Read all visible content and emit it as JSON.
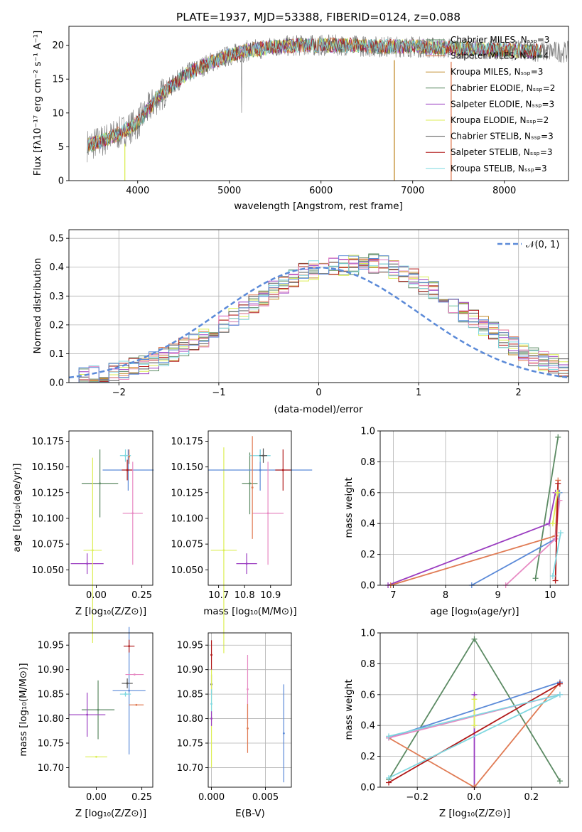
{
  "chart_data": [
    {
      "type": "line",
      "title": "PLATE=1937, MJD=53388, FIBERID=0124, z=0.088",
      "xlabel": "wavelength [Angstrom, rest frame]",
      "ylabel": "Flux [fλ10⁻¹⁷ erg cm⁻² s⁻¹ A⁻¹]",
      "xlim": [
        3250,
        8700
      ],
      "ylim": [
        0,
        22.8
      ],
      "xticks": [
        "4000",
        "5000",
        "6000",
        "7000",
        "8000"
      ],
      "yticks": [
        "0",
        "5",
        "10",
        "15",
        "20"
      ],
      "legend_position": "right",
      "continuum_model": {
        "x": [
          3450,
          3600,
          3800,
          4000,
          4200,
          4500,
          4800,
          5000,
          5200,
          5500,
          5800,
          6000,
          6300,
          6600,
          7000,
          7300,
          7600,
          8000,
          8400,
          8700
        ],
        "y": [
          5.2,
          5.8,
          7.0,
          8.5,
          12.0,
          15.5,
          17.5,
          18.5,
          19.2,
          19.8,
          20.0,
          20.0,
          20.0,
          19.8,
          19.8,
          19.6,
          19.5,
          19.3,
          19.1,
          19.0
        ]
      },
      "series": [
        {
          "name": "Chabrier MILES, N_SSP=3",
          "color": "#5b8a63"
        },
        {
          "name": "Salpeter MILES, N_SSP=4",
          "color": "#e07b54"
        },
        {
          "name": "Kroupa MILES, N_SSP=3",
          "color": "#c08a28"
        },
        {
          "name": "Chabrier ELODIE, N_SSP=2",
          "color": "#5b8a63"
        },
        {
          "name": "Salpeter ELODIE, N_SSP=3",
          "color": "#9a3cc0"
        },
        {
          "name": "Kroupa ELODIE, N_SSP=2",
          "color": "#dcee55"
        },
        {
          "name": "Chabrier STELIB, N_SSP=3",
          "color": "#555555"
        },
        {
          "name": "Salpeter STELIB, N_SSP=3",
          "color": "#b01818"
        },
        {
          "name": "Kroupa STELIB, N_SSP=3",
          "color": "#7fd8e0"
        }
      ],
      "vertical_lines": [
        {
          "x": 3860,
          "color": "#dcee55"
        },
        {
          "x": 6800,
          "color": "#c08a28"
        },
        {
          "x": 7420,
          "color": "#e07b54"
        }
      ]
    },
    {
      "type": "line",
      "xlabel": "(data-model)/error",
      "ylabel": "Normed distribution",
      "xlim": [
        -2.5,
        2.5
      ],
      "ylim": [
        0,
        0.53
      ],
      "xticks": [
        "−2",
        "−1",
        "0",
        "1",
        "2"
      ],
      "yticks": [
        "0.0",
        "0.1",
        "0.2",
        "0.3",
        "0.4",
        "0.5"
      ],
      "grid": true,
      "legend_position": "top-right",
      "reference_curve": {
        "name": "𝒩(0, 1)",
        "color": "#5b8ad8",
        "style": "dashed"
      },
      "bin_width": 0.1,
      "bin_start": -2.5,
      "base_histogram": [
        0.016,
        0.02,
        0.025,
        0.03,
        0.036,
        0.044,
        0.053,
        0.063,
        0.075,
        0.088,
        0.104,
        0.12,
        0.138,
        0.158,
        0.18,
        0.203,
        0.226,
        0.25,
        0.275,
        0.3,
        0.32,
        0.345,
        0.365,
        0.38,
        0.392,
        0.398,
        0.403,
        0.405,
        0.408,
        0.41,
        0.412,
        0.405,
        0.392,
        0.38,
        0.36,
        0.34,
        0.318,
        0.295,
        0.27,
        0.245,
        0.22,
        0.198,
        0.175,
        0.15,
        0.13,
        0.11,
        0.092,
        0.075,
        0.062,
        0.05,
        0.04
      ]
    },
    {
      "type": "scatter",
      "xlabel": "Z [log₁₀(Z/Z⊙)]",
      "ylabel": "age  [log₁₀(age/yr)]",
      "xlim": [
        -0.15,
        0.31
      ],
      "ylim": [
        10.035,
        10.185
      ],
      "xticks": [
        "0.00",
        "0.25"
      ],
      "yticks": [
        "10.050",
        "10.075",
        "10.100",
        "10.125",
        "10.150",
        "10.175"
      ],
      "points": [
        {
          "x": 0.02,
          "y": 10.134,
          "xerr": 0.1,
          "yerr": 0.033,
          "color": "#5b8a63"
        },
        {
          "x": -0.05,
          "y": 10.056,
          "xerr": 0.09,
          "yerr": 0.01,
          "color": "#9a3cc0"
        },
        {
          "x": -0.02,
          "y": 10.069,
          "xerr": 0.05,
          "yerr": 0.09,
          "color": "#dcee55"
        },
        {
          "x": 0.175,
          "y": 10.147,
          "xerr": 0.14,
          "yerr": 0.02,
          "color": "#5b8ad8"
        },
        {
          "x": 0.17,
          "y": 10.147,
          "xerr": 0.03,
          "yerr": 0.01,
          "color": "#b01818"
        },
        {
          "x": 0.2,
          "y": 10.105,
          "xerr": 0.055,
          "yerr": 0.05,
          "color": "#e78ac3"
        },
        {
          "x": 0.16,
          "y": 10.161,
          "xerr": 0.03,
          "yerr": 0.006,
          "color": "#7fd8e0"
        },
        {
          "x": 0.18,
          "y": 10.16,
          "xerr": 0.0,
          "yerr": 0.007,
          "color": "#e07b54"
        }
      ]
    },
    {
      "type": "scatter",
      "xlabel": "mass [log₁₀(M/M⊙)]",
      "xlim": [
        10.66,
        10.98
      ],
      "ylim": [
        10.035,
        10.185
      ],
      "xticks": [
        "10.7",
        "10.8",
        "10.9"
      ],
      "yticks": [
        "10.050",
        "10.075",
        "10.100",
        "10.125",
        "10.150",
        "10.175"
      ],
      "points": [
        {
          "x": 10.82,
          "y": 10.134,
          "xerr": 0.03,
          "yerr": 0.03,
          "color": "#5b8a63"
        },
        {
          "x": 10.808,
          "y": 10.056,
          "xerr": 0.04,
          "yerr": 0.01,
          "color": "#9a3cc0"
        },
        {
          "x": 10.72,
          "y": 10.069,
          "xerr": 0.05,
          "yerr": 0.1,
          "color": "#dcee55"
        },
        {
          "x": 10.86,
          "y": 10.147,
          "xerr": 0.2,
          "yerr": 0.02,
          "color": "#5b8ad8"
        },
        {
          "x": 10.948,
          "y": 10.147,
          "xerr": 0.03,
          "yerr": 0.02,
          "color": "#b01818"
        },
        {
          "x": 10.89,
          "y": 10.105,
          "xerr": 0.06,
          "yerr": 0.05,
          "color": "#e78ac3"
        },
        {
          "x": 10.86,
          "y": 10.161,
          "xerr": 0.04,
          "yerr": 0.006,
          "color": "#7fd8e0"
        },
        {
          "x": 10.872,
          "y": 10.161,
          "xerr": 0.015,
          "yerr": 0.007,
          "color": "#555555"
        },
        {
          "x": 10.83,
          "y": 10.13,
          "xerr": 0.0,
          "yerr": 0.05,
          "color": "#e07b54"
        }
      ]
    },
    {
      "type": "line",
      "xlabel": "age  [log₁₀(age/yr)]",
      "ylabel": "mass weight",
      "xlim": [
        6.75,
        10.35
      ],
      "ylim": [
        0,
        1
      ],
      "xticks": [
        "7",
        "8",
        "9",
        "10"
      ],
      "yticks": [
        "0.0",
        "0.2",
        "0.4",
        "0.6",
        "0.8",
        "1.0"
      ],
      "grid": true,
      "series": [
        {
          "color": "#5b8a63",
          "x": [
            9.72,
            10.15
          ],
          "y": [
            0.045,
            0.96
          ]
        },
        {
          "color": "#9a3cc0",
          "x": [
            6.9,
            9.98,
            10.1
          ],
          "y": [
            0.0,
            0.4,
            0.6
          ]
        },
        {
          "color": "#e07b54",
          "x": [
            6.95,
            10.1,
            10.15
          ],
          "y": [
            0.0,
            0.32,
            0.68
          ]
        },
        {
          "color": "#5b8ad8",
          "x": [
            8.5,
            10.1,
            10.18
          ],
          "y": [
            0.0,
            0.3,
            0.6
          ]
        },
        {
          "color": "#e78ac3",
          "x": [
            9.15,
            10.1,
            10.18
          ],
          "y": [
            0.0,
            0.3,
            0.55
          ]
        },
        {
          "color": "#b01818",
          "x": [
            10.1,
            10.15
          ],
          "y": [
            0.03,
            0.66
          ]
        },
        {
          "color": "#dcee55",
          "x": [
            10.05,
            10.14
          ],
          "y": [
            0.4,
            0.6
          ]
        },
        {
          "color": "#7fd8e0",
          "x": [
            10.05,
            10.2
          ],
          "y": [
            0.06,
            0.34
          ]
        }
      ]
    },
    {
      "type": "scatter",
      "xlabel": "Z [log₁₀(Z/Z⊙)]",
      "ylabel": "mass [log₁₀(M/M⊙)]",
      "xlim": [
        -0.15,
        0.31
      ],
      "ylim": [
        10.66,
        10.975
      ],
      "xticks": [
        "0.00",
        "0.25"
      ],
      "yticks": [
        "10.70",
        "10.75",
        "10.80",
        "10.85",
        "10.90",
        "10.95"
      ],
      "points": [
        {
          "x": 0.01,
          "y": 10.818,
          "xerr": 0.09,
          "yerr": 0.06,
          "color": "#5b8a63"
        },
        {
          "x": -0.05,
          "y": 10.808,
          "xerr": 0.1,
          "yerr": 0.045,
          "color": "#9a3cc0"
        },
        {
          "x": 0.0,
          "y": 10.722,
          "xerr": 0.06,
          "yerr": 0.0,
          "color": "#dcee55"
        },
        {
          "x": 0.18,
          "y": 10.857,
          "xerr": 0.09,
          "yerr": 0.13,
          "color": "#5b8ad8"
        },
        {
          "x": 0.18,
          "y": 10.948,
          "xerr": 0.03,
          "yerr": 0.013,
          "color": "#b01818"
        },
        {
          "x": 0.21,
          "y": 10.89,
          "xerr": 0.05,
          "yerr": 0.0,
          "color": "#e78ac3"
        },
        {
          "x": 0.17,
          "y": 10.872,
          "xerr": 0.03,
          "yerr": 0.01,
          "color": "#555555"
        },
        {
          "x": 0.22,
          "y": 10.828,
          "xerr": 0.04,
          "yerr": 0.0,
          "color": "#e07b54"
        },
        {
          "x": 0.16,
          "y": 10.85,
          "xerr": 0.03,
          "yerr": 0.005,
          "color": "#7fd8e0"
        }
      ]
    },
    {
      "type": "scatter",
      "xlabel": "E(B-V)",
      "xlim": [
        -0.0003,
        0.0074
      ],
      "ylim": [
        10.66,
        10.975
      ],
      "xticks": [
        "0.000",
        "0.005"
      ],
      "yticks": [
        "10.70",
        "10.75",
        "10.80",
        "10.85",
        "10.90",
        "10.95"
      ],
      "points": [
        {
          "x": 0.0,
          "y": 10.93,
          "yerr": 0.03,
          "color": "#b01818"
        },
        {
          "x": 0.0,
          "y": 10.87,
          "yerr": 0.02,
          "color": "#555555"
        },
        {
          "x": 0.0,
          "y": 10.8,
          "yerr": 0.1,
          "color": "#dcee55"
        },
        {
          "x": 0.0,
          "y": 10.83,
          "yerr": 0.03,
          "color": "#7fd8e0"
        },
        {
          "x": 0.0,
          "y": 10.8,
          "yerr": 0.015,
          "color": "#9a3cc0"
        },
        {
          "x": 0.00335,
          "y": 10.86,
          "yerr": 0.07,
          "color": "#e78ac3"
        },
        {
          "x": 0.00335,
          "y": 10.78,
          "yerr": 0.05,
          "color": "#e07b54"
        },
        {
          "x": 0.0067,
          "y": 10.77,
          "yerr": 0.1,
          "color": "#5b8ad8"
        }
      ]
    },
    {
      "type": "line",
      "xlabel": "Z [log₁₀(Z/Z⊙)]",
      "ylabel": "mass weight",
      "xlim": [
        -0.33,
        0.33
      ],
      "ylim": [
        0,
        1
      ],
      "xticks": [
        "−0.2",
        "0.0",
        "0.2"
      ],
      "yticks": [
        "0.0",
        "0.2",
        "0.4",
        "0.6",
        "0.8",
        "1.0"
      ],
      "grid": true,
      "series": [
        {
          "color": "#5b8a63",
          "x": [
            -0.3,
            0.0,
            0.3
          ],
          "y": [
            0.05,
            0.96,
            0.04
          ]
        },
        {
          "color": "#9a3cc0",
          "x": [
            0.0,
            0.0
          ],
          "y": [
            0.0,
            0.6
          ]
        },
        {
          "color": "#e07b54",
          "x": [
            -0.3,
            0.0,
            0.3
          ],
          "y": [
            0.32,
            0.0,
            0.68
          ]
        },
        {
          "color": "#5b8ad8",
          "x": [
            -0.3,
            0.3
          ],
          "y": [
            0.32,
            0.68
          ]
        },
        {
          "color": "#e78ac3",
          "x": [
            -0.3,
            0.3
          ],
          "y": [
            0.32,
            0.6
          ]
        },
        {
          "color": "#b01818",
          "x": [
            -0.3,
            0.3
          ],
          "y": [
            0.03,
            0.67
          ]
        },
        {
          "color": "#dcee55",
          "x": [
            0.0,
            0.0
          ],
          "y": [
            0.4,
            0.57
          ]
        },
        {
          "color": "#7fd8e0",
          "x": [
            -0.3,
            0.3,
            -0.3
          ],
          "y": [
            0.06,
            0.6,
            0.33
          ]
        }
      ]
    }
  ]
}
